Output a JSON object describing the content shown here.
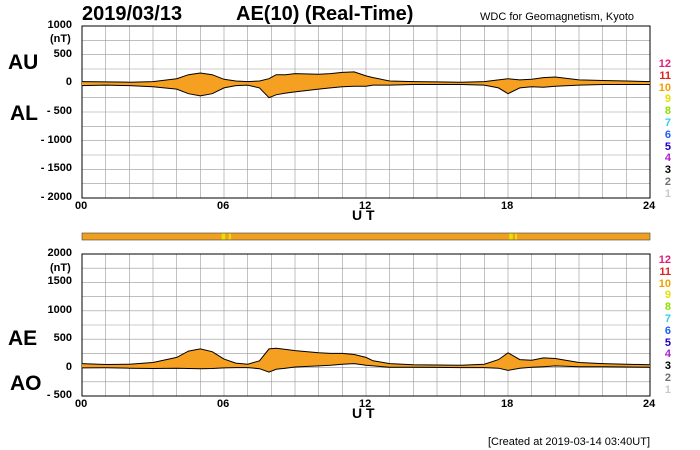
{
  "header": {
    "date": "2019/03/13",
    "title": "AE(10) (Real-Time)",
    "source": "WDC for Geomagnetism, Kyoto"
  },
  "footer": {
    "created": "[Created at 2019-03-14 03:40UT]"
  },
  "top_panel": {
    "label_upper": "AU",
    "label_lower": "AL",
    "unit": "(nT)",
    "y_ticks": [
      "1000",
      "500",
      "0",
      "- 500",
      "- 1000",
      "- 1500",
      "- 2000"
    ],
    "x_ticks": [
      "00",
      "06",
      "12",
      "18",
      "24"
    ],
    "x_label": "U T"
  },
  "bottom_panel": {
    "label_upper": "AE",
    "label_lower": "AO",
    "unit": "(nT)",
    "y_ticks": [
      "2000",
      "1500",
      "1000",
      "500",
      "0",
      "- 500"
    ],
    "x_ticks": [
      "00",
      "06",
      "12",
      "18",
      "24"
    ],
    "x_label": "U T"
  },
  "legend": {
    "items": [
      {
        "label": "12",
        "color": "#e0207a"
      },
      {
        "label": "11",
        "color": "#e02020"
      },
      {
        "label": "10",
        "color": "#f0a000"
      },
      {
        "label": "9",
        "color": "#e8e000"
      },
      {
        "label": "8",
        "color": "#90e000"
      },
      {
        "label": "7",
        "color": "#30d0e0"
      },
      {
        "label": "6",
        "color": "#2060f0"
      },
      {
        "label": "5",
        "color": "#2000c0"
      },
      {
        "label": "4",
        "color": "#b020d0"
      },
      {
        "label": "3",
        "color": "#000000"
      },
      {
        "label": "2",
        "color": "#707070"
      },
      {
        "label": "1",
        "color": "#c8c8c8"
      }
    ]
  },
  "colors": {
    "fill": "#f5a020",
    "grid": "#999999",
    "bar": "#f0a020",
    "highlight": "#e8e000"
  },
  "chart_data": [
    {
      "type": "area",
      "title": "AU / AL",
      "xlabel": "U T",
      "ylabel": "(nT)",
      "xlim": [
        0,
        24
      ],
      "ylim": [
        -2000,
        1000
      ],
      "x": [
        0,
        1,
        2,
        3,
        4,
        4.5,
        5,
        5.5,
        6,
        6.5,
        7,
        7.5,
        7.9,
        8.2,
        8.6,
        9,
        10,
        10.5,
        11,
        11.5,
        12,
        12.3,
        13,
        14,
        15,
        16,
        17,
        17.6,
        18,
        18.5,
        19,
        19.5,
        20,
        21,
        22,
        23,
        24
      ],
      "series": [
        {
          "name": "AU",
          "values": [
            30,
            25,
            20,
            30,
            80,
            150,
            180,
            150,
            70,
            40,
            30,
            40,
            80,
            150,
            150,
            170,
            160,
            170,
            190,
            200,
            130,
            100,
            40,
            30,
            25,
            20,
            30,
            60,
            80,
            60,
            70,
            100,
            110,
            60,
            50,
            40,
            30
          ]
        },
        {
          "name": "AL",
          "values": [
            -40,
            -30,
            -40,
            -60,
            -100,
            -180,
            -220,
            -180,
            -80,
            -40,
            -30,
            -80,
            -250,
            -200,
            -170,
            -150,
            -100,
            -80,
            -60,
            -50,
            -50,
            -30,
            -30,
            -20,
            -20,
            -20,
            -30,
            -80,
            -180,
            -80,
            -60,
            -70,
            -50,
            -30,
            -20,
            -20,
            -20
          ]
        }
      ]
    },
    {
      "type": "area",
      "title": "AE / AO",
      "xlabel": "U T",
      "ylabel": "(nT)",
      "xlim": [
        0,
        24
      ],
      "ylim": [
        -500,
        2000
      ],
      "x": [
        0,
        1,
        2,
        3,
        4,
        4.5,
        5,
        5.5,
        6,
        6.5,
        7,
        7.5,
        7.9,
        8.2,
        8.6,
        9,
        10,
        10.5,
        11,
        11.5,
        12,
        12.3,
        13,
        14,
        15,
        16,
        17,
        17.6,
        18,
        18.5,
        19,
        19.5,
        20,
        21,
        22,
        23,
        24
      ],
      "series": [
        {
          "name": "AE",
          "values": [
            70,
            55,
            60,
            90,
            180,
            290,
            330,
            280,
            150,
            80,
            60,
            120,
            330,
            340,
            320,
            300,
            260,
            250,
            250,
            230,
            180,
            120,
            70,
            50,
            45,
            40,
            60,
            140,
            260,
            140,
            130,
            170,
            160,
            90,
            70,
            60,
            50
          ]
        },
        {
          "name": "AO",
          "values": [
            -5,
            -3,
            -10,
            -15,
            -10,
            -15,
            -20,
            -15,
            -5,
            0,
            0,
            -20,
            -80,
            -30,
            -10,
            10,
            30,
            40,
            60,
            70,
            40,
            30,
            5,
            5,
            3,
            0,
            0,
            -10,
            -50,
            -10,
            5,
            15,
            30,
            15,
            15,
            10,
            5
          ]
        }
      ]
    }
  ]
}
